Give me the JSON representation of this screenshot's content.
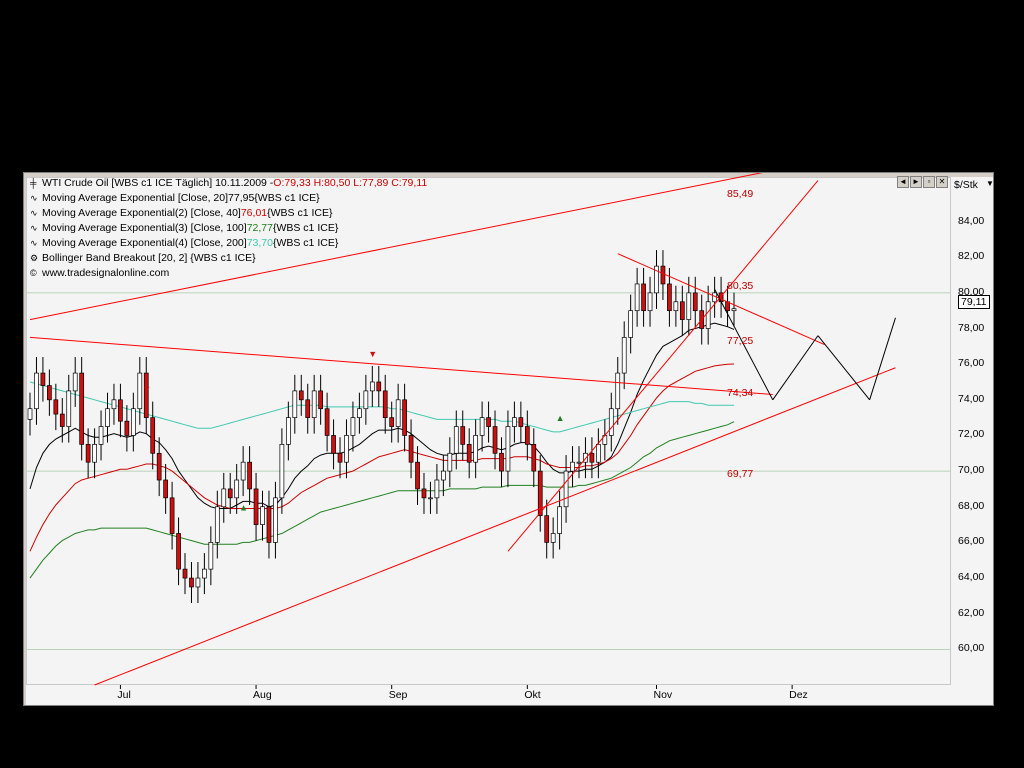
{
  "window": {
    "symbol_line": "WTI Crude Oil [WBS c1 ICE  Täglich] 10.11.2009 - ",
    "ohlc": "O:79,33 H:80,50 L:77,89 C:79,11",
    "unit": "$/Stk",
    "toolbar": [
      "◄",
      "►",
      "▫",
      "✕"
    ]
  },
  "legend": [
    {
      "text": "Moving Average Exponential [Close, 20] ",
      "value": "77,95",
      "suffix": " {WBS c1 ICE}",
      "color": "#000000"
    },
    {
      "text": "Moving Average Exponential(2) [Close, 40] ",
      "value": "76,01",
      "suffix": " {WBS c1 ICE}",
      "color": "#d00000"
    },
    {
      "text": "Moving Average Exponential(3) [Close, 100] ",
      "value": "72,77",
      "suffix": " {WBS c1 ICE}",
      "color": "#208020"
    },
    {
      "text": "Moving Average Exponential(4) [Close, 200] ",
      "value": "73,70",
      "suffix": " {WBS c1 ICE}",
      "color": "#40c8b0"
    },
    {
      "text": "Bollinger Band Breakout [20, 2] {WBS c1 ICE}",
      "value": "",
      "suffix": ""
    },
    {
      "text": "www.tradesignalonline.com",
      "value": "",
      "suffix": ""
    }
  ],
  "last_price_label": "79,11",
  "chart_data": {
    "type": "candlestick",
    "title": "WTI Crude Oil [WBS c1 ICE  Täglich] 10.11.2009",
    "ylabel": "$/Stk",
    "ylim": [
      58,
      86.5
    ],
    "yticks": [
      "84,00",
      "82,00",
      "80,00",
      "78,00",
      "76,00",
      "74,00",
      "72,00",
      "70,00",
      "68,00",
      "66,00",
      "64,00",
      "62,00",
      "60,00"
    ],
    "xticks": [
      "Jul",
      "Aug",
      "Sep",
      "Okt",
      "Nov",
      "Dez"
    ],
    "level_labels": [
      "85,49",
      "80,35",
      "77,25",
      "74,34",
      "69,77"
    ],
    "candles_close": [
      73.5,
      75.5,
      74.8,
      74.0,
      73.2,
      72.5,
      74.5,
      75.5,
      71.5,
      70.5,
      71.5,
      72.5,
      73.5,
      74.0,
      72.8,
      72.0,
      73.5,
      75.5,
      73.0,
      71.0,
      69.5,
      68.5,
      66.5,
      64.5,
      64.0,
      63.5,
      64.0,
      64.5,
      66.0,
      68.0,
      69.0,
      68.5,
      69.5,
      70.5,
      69.0,
      67.0,
      68.0,
      66.0,
      68.5,
      71.5,
      73.0,
      74.5,
      74.0,
      73.0,
      74.5,
      73.5,
      72.0,
      71.0,
      70.5,
      72.0,
      73.0,
      73.5,
      74.5,
      75.0,
      74.5,
      73.0,
      72.5,
      74.0,
      72.0,
      70.5,
      69.0,
      68.5,
      68.5,
      69.5,
      70.0,
      71.0,
      72.5,
      71.5,
      70.5,
      72.0,
      73.0,
      72.5,
      71.0,
      70.0,
      72.5,
      73.0,
      72.5,
      71.5,
      70.0,
      67.5,
      66.0,
      66.5,
      68.0,
      70.0,
      70.5,
      70.5,
      71.0,
      70.5,
      71.5,
      72.0,
      73.5,
      75.5,
      77.5,
      79.0,
      80.5,
      79.0,
      80.0,
      81.5,
      80.5,
      79.0,
      79.5,
      78.5,
      80.0,
      79.0,
      78.0,
      79.5,
      80.0,
      79.5,
      79.0,
      79.11
    ],
    "series": [
      {
        "name": "Moving Average Exponential [Close, 20]",
        "color": "#000000",
        "values": [
          69.0,
          70.2,
          71.0,
          71.5,
          71.8,
          72.0,
          72.2,
          72.4,
          72.2,
          72.0,
          71.9,
          71.9,
          72.0,
          72.1,
          72.0,
          71.9,
          72.0,
          72.2,
          72.1,
          71.8,
          71.6,
          71.2,
          70.7,
          70.0,
          69.5,
          69.0,
          68.5,
          68.2,
          68.0,
          67.9,
          67.9,
          67.9,
          68.1,
          68.3,
          68.3,
          68.2,
          68.2,
          68.0,
          68.1,
          68.5,
          69.0,
          69.6,
          70.0,
          70.3,
          70.7,
          70.9,
          71.0,
          71.0,
          71.0,
          71.1,
          71.3,
          71.5,
          71.8,
          72.1,
          72.3,
          72.3,
          72.3,
          72.4,
          72.3,
          72.1,
          71.8,
          71.5,
          71.2,
          71.0,
          70.9,
          70.9,
          71.0,
          71.0,
          71.0,
          71.1,
          71.3,
          71.4,
          71.3,
          71.2,
          71.3,
          71.5,
          71.6,
          71.6,
          71.4,
          71.0,
          70.5,
          70.1,
          69.9,
          69.9,
          70.0,
          70.0,
          70.1,
          70.1,
          70.3,
          70.5,
          70.8,
          71.5,
          72.4,
          73.3,
          74.3,
          75.1,
          75.8,
          76.5,
          77.0,
          77.2,
          77.4,
          77.6,
          77.9,
          78.0,
          78.1,
          78.2,
          78.3,
          78.2,
          78.1,
          77.95
        ]
      },
      {
        "name": "Moving Average Exponential(2) [Close, 40]",
        "color": "#d00000",
        "values": [
          65.5,
          66.3,
          67.0,
          67.6,
          68.1,
          68.5,
          68.9,
          69.3,
          69.5,
          69.6,
          69.7,
          69.8,
          69.9,
          70.0,
          70.1,
          70.1,
          70.2,
          70.3,
          70.4,
          70.4,
          70.3,
          70.2,
          70.0,
          69.7,
          69.4,
          69.1,
          68.8,
          68.5,
          68.3,
          68.1,
          68.0,
          67.9,
          67.9,
          67.9,
          67.9,
          67.9,
          67.9,
          67.9,
          67.9,
          68.0,
          68.2,
          68.5,
          68.8,
          69.0,
          69.2,
          69.4,
          69.6,
          69.7,
          69.8,
          69.9,
          70.0,
          70.2,
          70.4,
          70.6,
          70.8,
          70.9,
          71.0,
          71.1,
          71.2,
          71.1,
          71.0,
          70.9,
          70.8,
          70.7,
          70.6,
          70.6,
          70.6,
          70.6,
          70.6,
          70.6,
          70.7,
          70.7,
          70.7,
          70.7,
          70.7,
          70.8,
          70.8,
          70.8,
          70.7,
          70.6,
          70.4,
          70.3,
          70.2,
          70.2,
          70.2,
          70.2,
          70.3,
          70.3,
          70.4,
          70.5,
          70.7,
          71.0,
          71.5,
          72.0,
          72.6,
          73.1,
          73.6,
          74.1,
          74.5,
          74.8,
          75.0,
          75.2,
          75.4,
          75.6,
          75.7,
          75.8,
          75.9,
          75.95,
          76.0,
          76.01
        ]
      },
      {
        "name": "Moving Average Exponential(3) [Close, 100]",
        "color": "#208020",
        "values": [
          64.0,
          64.5,
          65.0,
          65.4,
          65.8,
          66.1,
          66.3,
          66.5,
          66.6,
          66.7,
          66.7,
          66.8,
          66.8,
          66.8,
          66.8,
          66.8,
          66.8,
          66.8,
          66.8,
          66.7,
          66.6,
          66.5,
          66.4,
          66.3,
          66.2,
          66.1,
          66.0,
          65.9,
          65.9,
          65.9,
          65.9,
          65.9,
          65.9,
          66.0,
          66.0,
          66.1,
          66.2,
          66.3,
          66.4,
          66.5,
          66.7,
          66.9,
          67.1,
          67.3,
          67.5,
          67.7,
          67.8,
          67.9,
          68.0,
          68.1,
          68.2,
          68.3,
          68.4,
          68.5,
          68.6,
          68.7,
          68.8,
          68.9,
          68.9,
          68.9,
          68.9,
          68.9,
          68.9,
          68.9,
          68.9,
          69.0,
          69.0,
          69.0,
          69.0,
          69.0,
          69.1,
          69.1,
          69.1,
          69.1,
          69.2,
          69.2,
          69.2,
          69.2,
          69.2,
          69.2,
          69.1,
          69.1,
          69.1,
          69.1,
          69.1,
          69.2,
          69.2,
          69.3,
          69.4,
          69.5,
          69.6,
          69.8,
          70.0,
          70.2,
          70.5,
          70.8,
          71.0,
          71.3,
          71.5,
          71.7,
          71.8,
          71.9,
          72.0,
          72.1,
          72.2,
          72.3,
          72.4,
          72.5,
          72.6,
          72.77
        ]
      },
      {
        "name": "Moving Average Exponential(4) [Close, 200]",
        "color": "#40c8b0",
        "values": [
          75.0,
          74.9,
          74.8,
          74.7,
          74.6,
          74.5,
          74.4,
          74.3,
          74.2,
          74.1,
          74.0,
          73.9,
          73.8,
          73.7,
          73.6,
          73.5,
          73.4,
          73.3,
          73.2,
          73.1,
          73.0,
          72.9,
          72.8,
          72.7,
          72.6,
          72.5,
          72.4,
          72.4,
          72.4,
          72.5,
          72.6,
          72.7,
          72.8,
          72.9,
          73.0,
          73.1,
          73.2,
          73.3,
          73.4,
          73.5,
          73.6,
          73.7,
          73.7,
          73.7,
          73.7,
          73.7,
          73.6,
          73.6,
          73.6,
          73.6,
          73.6,
          73.6,
          73.6,
          73.6,
          73.6,
          73.6,
          73.5,
          73.5,
          73.4,
          73.3,
          73.2,
          73.1,
          73.0,
          72.9,
          72.9,
          72.9,
          72.9,
          72.9,
          72.9,
          72.9,
          72.9,
          72.9,
          72.9,
          72.8,
          72.8,
          72.8,
          72.7,
          72.6,
          72.5,
          72.4,
          72.3,
          72.2,
          72.2,
          72.3,
          72.4,
          72.5,
          72.6,
          72.7,
          72.8,
          72.9,
          73.0,
          73.1,
          73.2,
          73.3,
          73.4,
          73.5,
          73.6,
          73.7,
          73.8,
          73.9,
          73.9,
          73.9,
          73.9,
          73.8,
          73.8,
          73.7,
          73.7,
          73.7,
          73.7,
          73.7
        ]
      }
    ]
  }
}
